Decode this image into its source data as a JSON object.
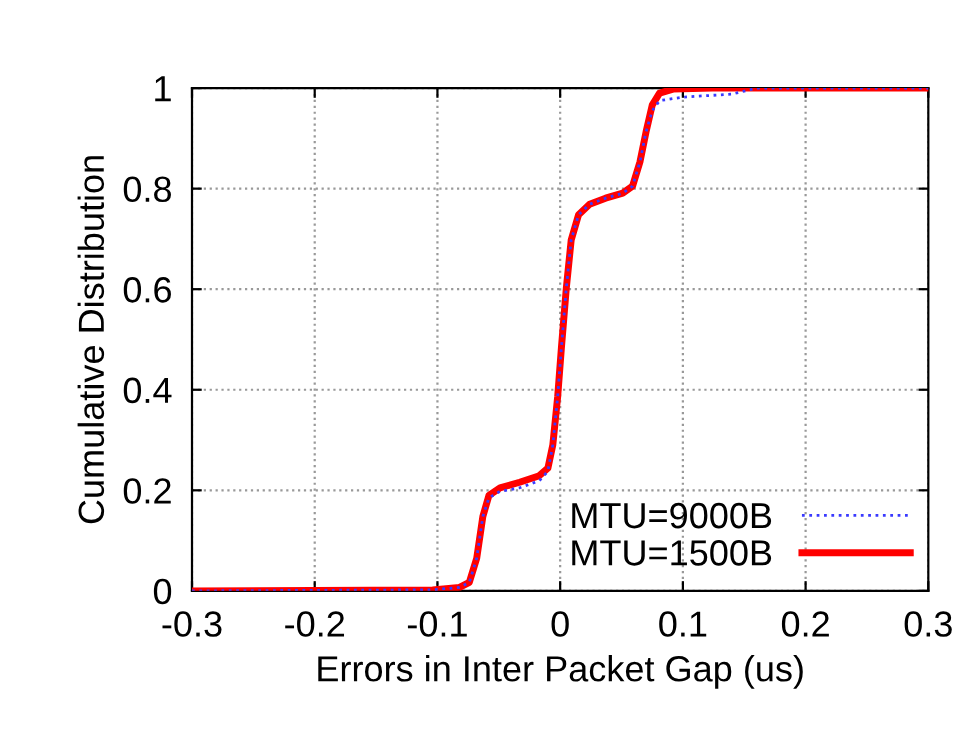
{
  "chart_data": {
    "type": "line",
    "xlabel": "Errors in Inter Packet Gap (us)",
    "ylabel": "Cumulative Distribution",
    "xlim": [
      -0.3,
      0.3
    ],
    "xticks": [
      -0.3,
      -0.2,
      -0.1,
      0,
      0.1,
      0.2,
      0.3
    ],
    "ylim": [
      0,
      1
    ],
    "yticks": [
      0,
      0.2,
      0.4,
      0.6,
      0.8,
      1
    ],
    "grid": true,
    "legend": "bottom right",
    "series": [
      {
        "name": "MTU=9000B",
        "color": "#3a3aff",
        "line_style": "dotted",
        "x": [
          -0.3,
          -0.104,
          -0.082,
          -0.074,
          -0.068,
          -0.063,
          -0.058,
          -0.049,
          -0.033,
          -0.017,
          -0.01,
          -0.006,
          -0.002,
          0.001,
          0.005,
          0.009,
          0.015,
          0.024,
          0.037,
          0.051,
          0.059,
          0.065,
          0.07,
          0.075,
          0.081,
          0.1,
          0.14,
          0.15,
          0.16,
          0.3
        ],
        "values": [
          0,
          0.002,
          0.007,
          0.017,
          0.065,
          0.148,
          0.185,
          0.198,
          0.205,
          0.219,
          0.238,
          0.29,
          0.387,
          0.483,
          0.602,
          0.698,
          0.748,
          0.769,
          0.781,
          0.791,
          0.805,
          0.853,
          0.913,
          0.955,
          0.975,
          0.982,
          0.988,
          0.994,
          1,
          1
        ]
      },
      {
        "name": "MTU=1500B",
        "color": "#ff0000",
        "line_style": "solid",
        "x": [
          -0.3,
          -0.104,
          -0.082,
          -0.074,
          -0.068,
          -0.063,
          -0.058,
          -0.049,
          -0.033,
          -0.017,
          -0.01,
          -0.006,
          -0.002,
          0.001,
          0.005,
          0.009,
          0.015,
          0.024,
          0.037,
          0.051,
          0.059,
          0.065,
          0.07,
          0.075,
          0.081,
          0.092,
          0.124,
          0.3
        ],
        "values": [
          0,
          0.002,
          0.007,
          0.017,
          0.065,
          0.148,
          0.19,
          0.205,
          0.216,
          0.229,
          0.244,
          0.29,
          0.387,
          0.483,
          0.602,
          0.698,
          0.748,
          0.769,
          0.781,
          0.791,
          0.805,
          0.853,
          0.913,
          0.966,
          0.99,
          0.998,
          1,
          1
        ]
      }
    ]
  }
}
